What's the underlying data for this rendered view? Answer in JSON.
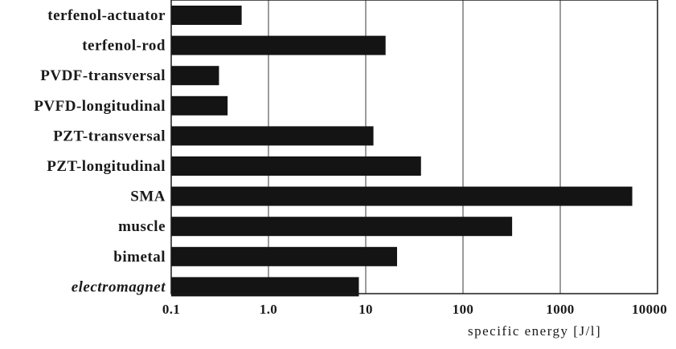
{
  "chart_data": {
    "type": "bar",
    "orientation": "horizontal",
    "x_scale": "log",
    "xlabel": "specific energy [J/l]",
    "xlim": [
      0.1,
      10000
    ],
    "x_ticks": [
      0.1,
      1.0,
      10,
      100,
      1000,
      10000
    ],
    "x_tick_labels": [
      "0.1",
      "1.0",
      "10",
      "100",
      "1000",
      "10000"
    ],
    "grid": "vertical",
    "categories": [
      "terfenol-actuator",
      "terfenol-rod",
      "PVDF-transversal",
      "PVFD-longitudinal",
      "PZT-transversal",
      "PZT-longitudinal",
      "SMA",
      "muscle",
      "bimetal",
      "electromagnet"
    ],
    "italic_categories": [
      "electromagnet"
    ],
    "values": [
      0.53,
      16,
      0.31,
      0.38,
      12,
      37,
      5500,
      320,
      21,
      8.5
    ],
    "bar_color": "#141414"
  }
}
